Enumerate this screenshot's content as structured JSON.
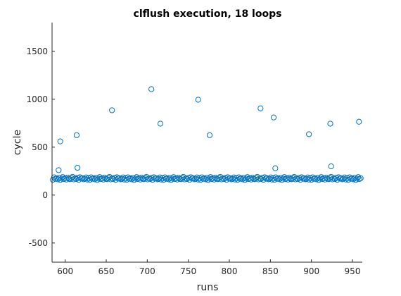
{
  "chart_data": {
    "type": "scatter",
    "title": "clflush execution, 18 loops",
    "xlabel": "runs",
    "ylabel": "cycle",
    "xlim": [
      584,
      962
    ],
    "ylim": [
      -700,
      1800
    ],
    "xticks": [
      600,
      650,
      700,
      750,
      800,
      850,
      900,
      950
    ],
    "yticks": [
      -500,
      0,
      500,
      1000,
      1500
    ],
    "grid": false,
    "legend": "none",
    "marker": "circle-open",
    "colors": {
      "series": "#0072BD",
      "axis": "#262626"
    },
    "baseline": {
      "x_start": 585,
      "x_end": 961,
      "x_step": 1.5,
      "y_values": [
        160,
        185,
        170,
        175,
        165,
        180,
        158,
        172,
        188,
        168,
        176,
        162,
        182,
        170,
        166,
        178,
        190,
        164,
        174,
        168,
        180,
        160,
        186,
        172,
        176,
        165,
        170,
        184,
        162,
        178
      ]
    },
    "outliers": [
      {
        "x": 592,
        "y": 260
      },
      {
        "x": 594,
        "y": 560
      },
      {
        "x": 614,
        "y": 625
      },
      {
        "x": 615,
        "y": 285
      },
      {
        "x": 657,
        "y": 885
      },
      {
        "x": 705,
        "y": 1105
      },
      {
        "x": 716,
        "y": 745
      },
      {
        "x": 762,
        "y": 995
      },
      {
        "x": 776,
        "y": 625
      },
      {
        "x": 838,
        "y": 905
      },
      {
        "x": 854,
        "y": 810
      },
      {
        "x": 856,
        "y": 280
      },
      {
        "x": 897,
        "y": 635
      },
      {
        "x": 923,
        "y": 745
      },
      {
        "x": 924,
        "y": 300
      },
      {
        "x": 958,
        "y": 765
      }
    ]
  }
}
